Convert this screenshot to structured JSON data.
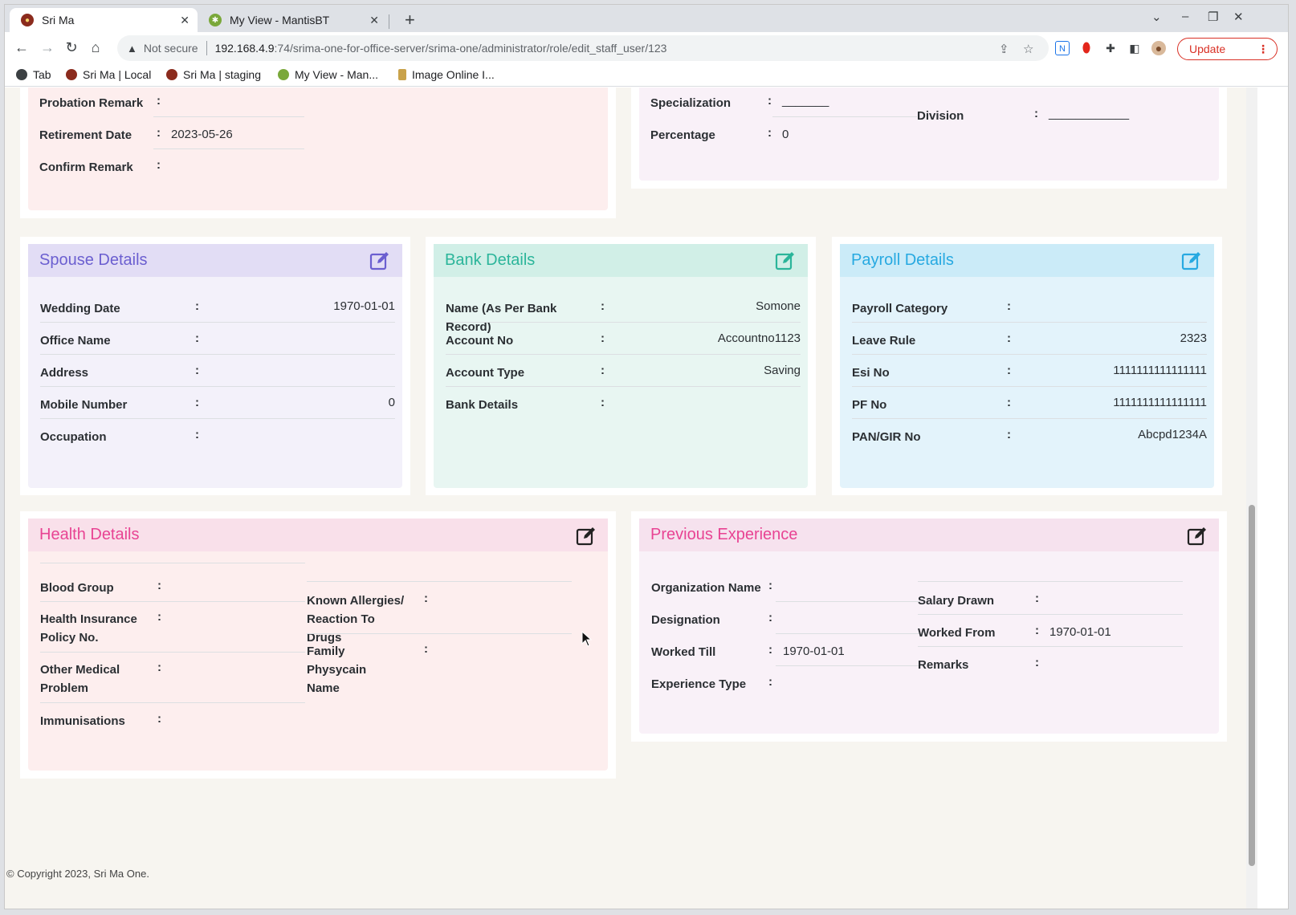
{
  "browser": {
    "tabs": [
      {
        "title": "Sri Ma",
        "active": true
      },
      {
        "title": "My View - MantisBT",
        "active": false
      }
    ],
    "url": {
      "warning": "Not secure",
      "host": "192.168.4.9",
      "path": ":74/srima-one-for-office-server/srima-one/administrator/role/edit_staff_user/123"
    },
    "update_label": "Update",
    "bookmarks": [
      "Tab",
      "Sri Ma | Local",
      "Sri Ma | staging",
      "My View - Man...",
      "Image Online I..."
    ]
  },
  "top_left": {
    "rows": [
      {
        "label": "Probation Remark",
        "value": ""
      },
      {
        "label": "Retirement Date",
        "value": "2023-05-26"
      },
      {
        "label": "Confirm Remark",
        "value": ""
      }
    ]
  },
  "top_right": {
    "left_rows": [
      {
        "label": "Specialization",
        "value": "_______"
      },
      {
        "label": "Percentage",
        "value": "0"
      }
    ],
    "right_rows": [
      {
        "label": "Division",
        "value": "____________"
      }
    ]
  },
  "spouse": {
    "title": "Spouse Details",
    "rows": [
      {
        "label": "Wedding Date",
        "value": "1970-01-01"
      },
      {
        "label": "Office Name",
        "value": ""
      },
      {
        "label": "Address",
        "value": ""
      },
      {
        "label": "Mobile Number",
        "value": "0"
      },
      {
        "label": "Occupation",
        "value": ""
      }
    ]
  },
  "bank": {
    "title": "Bank Details",
    "rows": [
      {
        "label": "Name (As Per Bank Record)",
        "value": "Somone"
      },
      {
        "label": "Account No",
        "value": "Accountno1123"
      },
      {
        "label": "Account Type",
        "value": "Saving"
      },
      {
        "label": "Bank Details",
        "value": ""
      }
    ]
  },
  "payroll": {
    "title": "Payroll Details",
    "rows": [
      {
        "label": "Payroll Category",
        "value": ""
      },
      {
        "label": "Leave Rule",
        "value": "2323"
      },
      {
        "label": "Esi No",
        "value": "1111111111111111"
      },
      {
        "label": "PF No",
        "value": "1111111111111111"
      },
      {
        "label": "PAN/GIR No",
        "value": "Abcpd1234A"
      }
    ]
  },
  "health": {
    "title": "Health Details",
    "left_rows": [
      {
        "label": "Blood Group",
        "value": ""
      },
      {
        "label": "Health Insurance Policy No.",
        "value": ""
      },
      {
        "label": "Other Medical Problem",
        "value": ""
      },
      {
        "label": "Immunisations",
        "value": ""
      }
    ],
    "right_rows": [
      {
        "label": "Known Allergies/ Reaction To Drugs",
        "value": ""
      },
      {
        "label": "Family Physycain Name",
        "value": ""
      }
    ]
  },
  "experience": {
    "title": "Previous Experience",
    "left_rows": [
      {
        "label": "Organization Name",
        "value": ""
      },
      {
        "label": "Designation",
        "value": ""
      },
      {
        "label": "Worked Till",
        "value": "1970-01-01"
      },
      {
        "label": "Experience Type",
        "value": ""
      }
    ],
    "right_rows": [
      {
        "label": "Salary Drawn",
        "value": ""
      },
      {
        "label": "Worked From",
        "value": "1970-01-01"
      },
      {
        "label": "Remarks",
        "value": ""
      }
    ]
  },
  "colon": ":",
  "footer": "© Copyright 2023, Sri Ma One.",
  "colors": {
    "spouse_accent": "#6b5fd0",
    "bank_accent": "#2bb59a",
    "payroll_accent": "#27a9e1",
    "health_accent": "#e84393",
    "experience_accent": "#e84393"
  }
}
